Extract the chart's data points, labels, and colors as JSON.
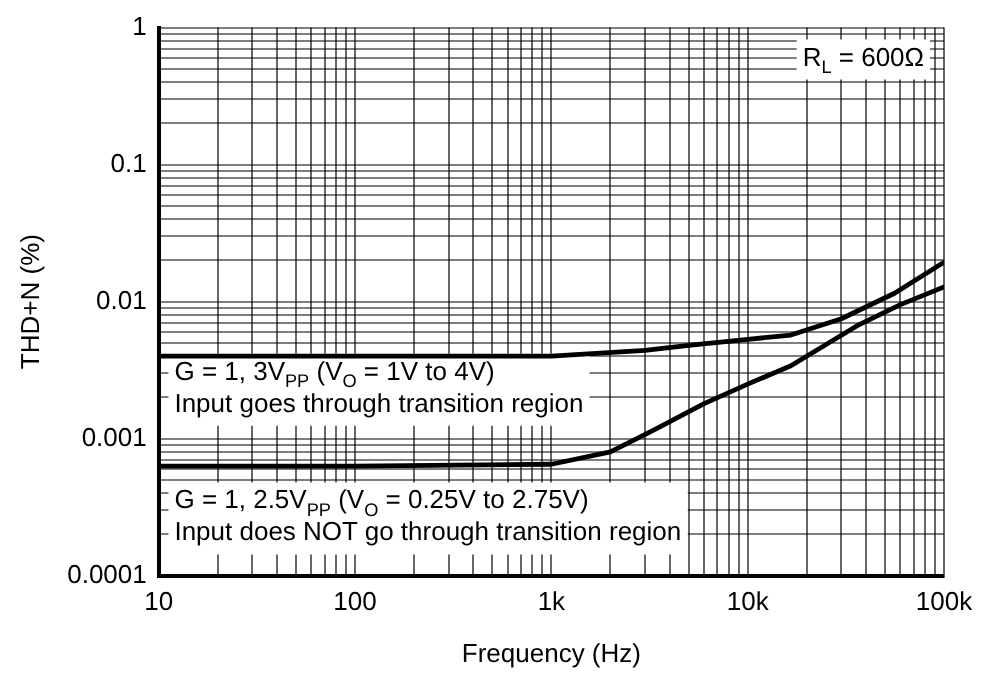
{
  "chart_data": {
    "type": "line",
    "xlabel": "Frequency (Hz)",
    "ylabel": "THD+N (%)",
    "log": "xy",
    "grid": true,
    "legend": false,
    "marker": "none",
    "line_style": "solid",
    "xlim": [
      10,
      100000
    ],
    "ylim": [
      0.0001,
      1
    ],
    "xticks": [
      {
        "value": 10,
        "label": "10"
      },
      {
        "value": 20,
        "label": null
      },
      {
        "value": 30,
        "label": null
      },
      {
        "value": 40,
        "label": null
      },
      {
        "value": 50,
        "label": null
      },
      {
        "value": 60,
        "label": null
      },
      {
        "value": 70,
        "label": null
      },
      {
        "value": 80,
        "label": null
      },
      {
        "value": 90,
        "label": null
      },
      {
        "value": 100,
        "label": "100"
      },
      {
        "value": 200,
        "label": null
      },
      {
        "value": 300,
        "label": null
      },
      {
        "value": 400,
        "label": null
      },
      {
        "value": 500,
        "label": null
      },
      {
        "value": 600,
        "label": null
      },
      {
        "value": 700,
        "label": null
      },
      {
        "value": 800,
        "label": null
      },
      {
        "value": 900,
        "label": null
      },
      {
        "value": 1000,
        "label": "1k"
      },
      {
        "value": 2000,
        "label": null
      },
      {
        "value": 3000,
        "label": null
      },
      {
        "value": 4000,
        "label": null
      },
      {
        "value": 5000,
        "label": null
      },
      {
        "value": 6000,
        "label": null
      },
      {
        "value": 7000,
        "label": null
      },
      {
        "value": 8000,
        "label": null
      },
      {
        "value": 9000,
        "label": null
      },
      {
        "value": 10000,
        "label": "10k"
      },
      {
        "value": 20000,
        "label": null
      },
      {
        "value": 30000,
        "label": null
      },
      {
        "value": 40000,
        "label": null
      },
      {
        "value": 50000,
        "label": null
      },
      {
        "value": 60000,
        "label": null
      },
      {
        "value": 70000,
        "label": null
      },
      {
        "value": 80000,
        "label": null
      },
      {
        "value": 90000,
        "label": null
      },
      {
        "value": 100000,
        "label": "100k"
      }
    ],
    "yticks": [
      {
        "value": 0.0001,
        "label": "0.0001"
      },
      {
        "value": 0.0002,
        "label": null
      },
      {
        "value": 0.0003,
        "label": null
      },
      {
        "value": 0.0004,
        "label": null
      },
      {
        "value": 0.0005,
        "label": null
      },
      {
        "value": 0.0006,
        "label": null
      },
      {
        "value": 0.0007,
        "label": null
      },
      {
        "value": 0.0008,
        "label": null
      },
      {
        "value": 0.0009,
        "label": null
      },
      {
        "value": 0.001,
        "label": "0.001"
      },
      {
        "value": 0.002,
        "label": null
      },
      {
        "value": 0.003,
        "label": null
      },
      {
        "value": 0.004,
        "label": null
      },
      {
        "value": 0.005,
        "label": null
      },
      {
        "value": 0.006,
        "label": null
      },
      {
        "value": 0.007,
        "label": null
      },
      {
        "value": 0.008,
        "label": null
      },
      {
        "value": 0.009,
        "label": null
      },
      {
        "value": 0.01,
        "label": "0.01"
      },
      {
        "value": 0.02,
        "label": null
      },
      {
        "value": 0.03,
        "label": null
      },
      {
        "value": 0.04,
        "label": null
      },
      {
        "value": 0.05,
        "label": null
      },
      {
        "value": 0.06,
        "label": null
      },
      {
        "value": 0.07,
        "label": null
      },
      {
        "value": 0.08,
        "label": null
      },
      {
        "value": 0.09,
        "label": null
      },
      {
        "value": 0.1,
        "label": "0.1"
      },
      {
        "value": 0.2,
        "label": null
      },
      {
        "value": 0.3,
        "label": null
      },
      {
        "value": 0.4,
        "label": null
      },
      {
        "value": 0.5,
        "label": null
      },
      {
        "value": 0.6,
        "label": null
      },
      {
        "value": 0.7,
        "label": null
      },
      {
        "value": 0.8,
        "label": null
      },
      {
        "value": 0.9,
        "label": null
      },
      {
        "value": 1,
        "label": "1"
      }
    ],
    "series": [
      {
        "color": "#000000",
        "x": [
          10,
          100,
          1000,
          3000,
          5000,
          10000,
          16600,
          30000,
          56000,
          100000
        ],
        "values": [
          0.004,
          0.004,
          0.004,
          0.0044,
          0.0048,
          0.0053,
          0.0057,
          0.0075,
          0.0115,
          0.0194
        ]
      },
      {
        "color": "#000000",
        "x": [
          10,
          100,
          1000,
          2000,
          3300,
          6000,
          10000,
          16600,
          37000,
          60000,
          100000
        ],
        "values": [
          0.00063,
          0.00063,
          0.00065,
          0.0008,
          0.00115,
          0.0018,
          0.0025,
          0.0034,
          0.0068,
          0.0095,
          0.0128
        ]
      }
    ],
    "annotations": [
      "R$_{L}$ = 600Ω",
      "G = 1, 3V$_{PP}$ (V$_{O}$ = 1V to 4V)\nInput goes through transition region",
      "G = 1, 2.5V$_{PP}$ (V$_{O}$ = 0.25V to 2.75V)\nInput does NOT go through transition region"
    ]
  }
}
